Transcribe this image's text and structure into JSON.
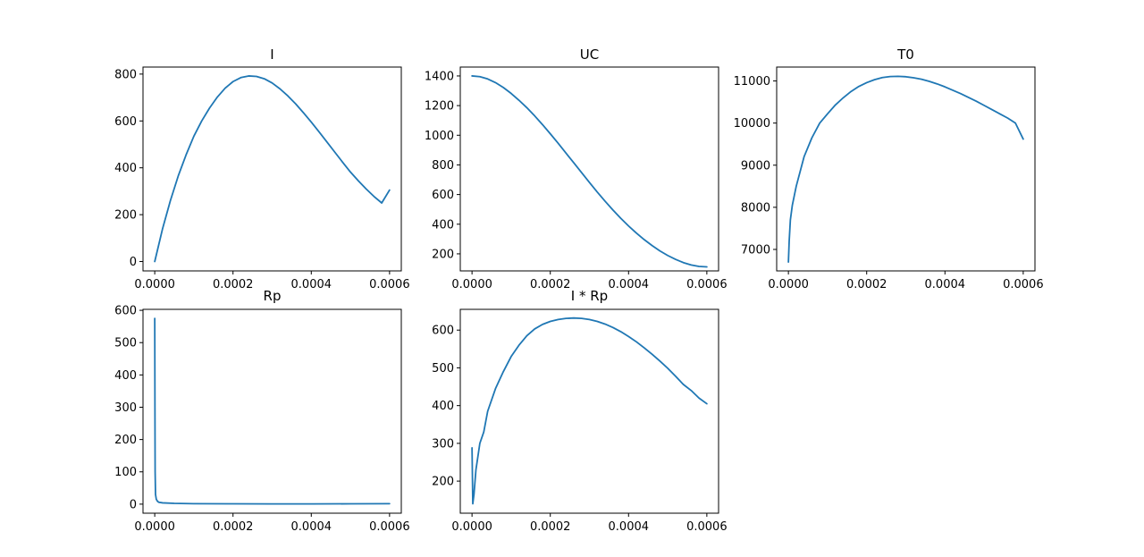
{
  "colors": {
    "line": "#1f77b4",
    "axes": "#000000",
    "background": "#ffffff"
  },
  "chart_data": [
    {
      "type": "line",
      "title": "I",
      "xlabel": "",
      "ylabel": "",
      "xlim": [
        -3e-05,
        0.00063
      ],
      "ylim": [
        -40,
        830
      ],
      "grid": false,
      "xticks": [
        0,
        0.0002,
        0.0004,
        0.0006
      ],
      "xtick_labels": [
        "0.0000",
        "0.0002",
        "0.0004",
        "0.0006"
      ],
      "yticks": [
        0,
        200,
        400,
        600,
        800
      ],
      "ytick_labels": [
        "0",
        "200",
        "400",
        "600",
        "800"
      ],
      "x": [
        0,
        2e-05,
        4e-05,
        6e-05,
        8e-05,
        0.0001,
        0.00012,
        0.00014,
        0.00016,
        0.00018,
        0.0002,
        0.00022,
        0.00024,
        0.00026,
        0.00028,
        0.0003,
        0.00032,
        0.00034,
        0.00036,
        0.00038,
        0.0004,
        0.00042,
        0.00044,
        0.00046,
        0.00048,
        0.0005,
        0.00052,
        0.00054,
        0.00056,
        0.00058,
        0.0006
      ],
      "y": [
        0,
        140,
        260,
        365,
        455,
        535,
        600,
        655,
        702,
        740,
        768,
        785,
        792,
        790,
        780,
        762,
        737,
        707,
        673,
        635,
        595,
        553,
        510,
        467,
        424,
        382,
        345,
        310,
        278,
        250,
        305
      ]
    },
    {
      "type": "line",
      "title": "UC",
      "xlabel": "",
      "ylabel": "",
      "xlim": [
        -3e-05,
        0.00063
      ],
      "ylim": [
        85,
        1460
      ],
      "grid": false,
      "xticks": [
        0,
        0.0002,
        0.0004,
        0.0006
      ],
      "xtick_labels": [
        "0.0000",
        "0.0002",
        "0.0004",
        "0.0006"
      ],
      "yticks": [
        200,
        400,
        600,
        800,
        1000,
        1200,
        1400
      ],
      "ytick_labels": [
        "200",
        "400",
        "600",
        "800",
        "1000",
        "1200",
        "1400"
      ],
      "x": [
        0,
        2e-05,
        4e-05,
        6e-05,
        8e-05,
        0.0001,
        0.00012,
        0.00014,
        0.00016,
        0.00018,
        0.0002,
        0.00022,
        0.00024,
        0.00026,
        0.00028,
        0.0003,
        0.00032,
        0.00034,
        0.00036,
        0.00038,
        0.0004,
        0.00042,
        0.00044,
        0.00046,
        0.00048,
        0.0005,
        0.00052,
        0.00054,
        0.00056,
        0.00058,
        0.0006
      ],
      "y": [
        1400,
        1395,
        1380,
        1355,
        1322,
        1282,
        1236,
        1186,
        1131,
        1072,
        1010,
        946,
        880,
        814,
        748,
        682,
        617,
        555,
        496,
        440,
        388,
        340,
        296,
        256,
        220,
        189,
        163,
        141,
        125,
        115,
        112
      ]
    },
    {
      "type": "line",
      "title": "T0",
      "xlabel": "",
      "ylabel": "",
      "xlim": [
        -3e-05,
        0.00063
      ],
      "ylim": [
        6490,
        11330
      ],
      "grid": false,
      "xticks": [
        0,
        0.0002,
        0.0004,
        0.0006
      ],
      "xtick_labels": [
        "0.0000",
        "0.0002",
        "0.0004",
        "0.0006"
      ],
      "yticks": [
        7000,
        8000,
        9000,
        10000,
        11000
      ],
      "ytick_labels": [
        "7000",
        "8000",
        "9000",
        "10000",
        "11000"
      ],
      "x": [
        0,
        2e-06,
        5e-06,
        1e-05,
        2e-05,
        4e-05,
        6e-05,
        8e-05,
        0.0001,
        0.00012,
        0.00014,
        0.00016,
        0.00018,
        0.0002,
        0.00022,
        0.00024,
        0.00026,
        0.00028,
        0.0003,
        0.00032,
        0.00034,
        0.00036,
        0.00038,
        0.0004,
        0.00042,
        0.00044,
        0.00046,
        0.00048,
        0.0005,
        0.00052,
        0.00054,
        0.00056,
        0.00058,
        0.0006
      ],
      "y": [
        6700,
        7200,
        7700,
        8050,
        8500,
        9200,
        9650,
        10000,
        10220,
        10430,
        10600,
        10750,
        10870,
        10960,
        11030,
        11080,
        11105,
        11110,
        11100,
        11075,
        11040,
        10990,
        10930,
        10860,
        10780,
        10700,
        10610,
        10520,
        10420,
        10320,
        10220,
        10120,
        10000,
        9620
      ]
    },
    {
      "type": "line",
      "title": "Rp",
      "xlabel": "",
      "ylabel": "",
      "xlim": [
        -3e-05,
        0.00063
      ],
      "ylim": [
        -28,
        603
      ],
      "grid": false,
      "xticks": [
        0,
        0.0002,
        0.0004,
        0.0006
      ],
      "xtick_labels": [
        "0.0000",
        "0.0002",
        "0.0004",
        "0.0006"
      ],
      "yticks": [
        0,
        100,
        200,
        300,
        400,
        500,
        600
      ],
      "ytick_labels": [
        "0",
        "100",
        "200",
        "300",
        "400",
        "500",
        "600"
      ],
      "x": [
        0,
        5e-07,
        1e-06,
        2e-06,
        4e-06,
        7e-06,
        1e-05,
        2e-05,
        5e-05,
        0.0001,
        0.0002,
        0.0003,
        0.0004,
        0.0005,
        0.0006
      ],
      "y": [
        575,
        300,
        100,
        30,
        15,
        9,
        6,
        4,
        2.5,
        1.5,
        1,
        0.8,
        0.8,
        1,
        1.3
      ]
    },
    {
      "type": "line",
      "title": "I * Rp",
      "xlabel": "",
      "ylabel": "",
      "xlim": [
        -3e-05,
        0.00063
      ],
      "ylim": [
        115,
        655
      ],
      "grid": false,
      "xticks": [
        0,
        0.0002,
        0.0004,
        0.0006
      ],
      "xtick_labels": [
        "0.0000",
        "0.0002",
        "0.0004",
        "0.0006"
      ],
      "yticks": [
        200,
        300,
        400,
        500,
        600
      ],
      "ytick_labels": [
        "200",
        "300",
        "400",
        "500",
        "600"
      ],
      "x": [
        0,
        2e-06,
        5e-06,
        1e-05,
        2e-05,
        3e-05,
        4e-05,
        6e-05,
        8e-05,
        0.0001,
        0.00012,
        0.00014,
        0.00016,
        0.00018,
        0.0002,
        0.00022,
        0.00024,
        0.00026,
        0.00028,
        0.0003,
        0.00032,
        0.00034,
        0.00036,
        0.00038,
        0.0004,
        0.00042,
        0.00044,
        0.00046,
        0.00048,
        0.0005,
        0.00052,
        0.00054,
        0.00056,
        0.00058,
        0.0006
      ],
      "y": [
        288,
        140,
        165,
        230,
        300,
        330,
        385,
        445,
        490,
        530,
        560,
        585,
        603,
        615,
        623,
        628,
        631,
        632,
        631,
        628,
        623,
        616,
        607,
        596,
        583,
        569,
        553,
        536,
        518,
        499,
        478,
        456,
        440,
        420,
        405
      ]
    }
  ]
}
